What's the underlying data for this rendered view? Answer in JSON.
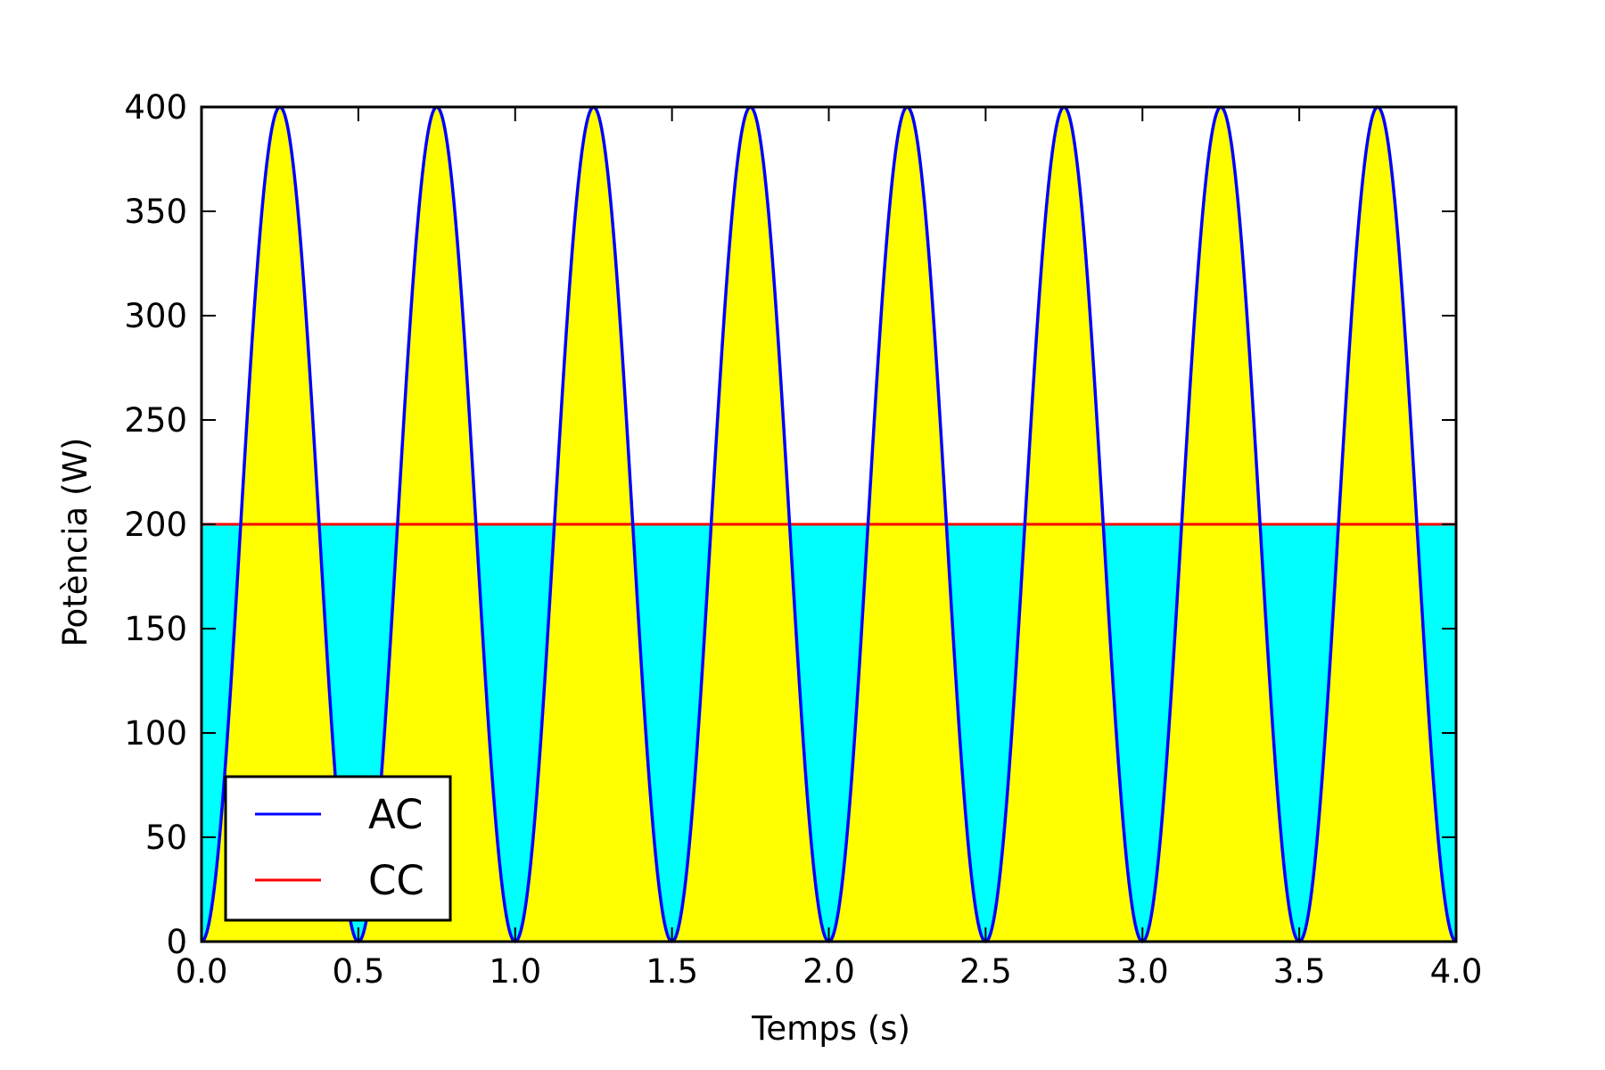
{
  "chart_data": {
    "type": "area",
    "title": "",
    "xlabel": "Temps (s)",
    "ylabel": "Potència (W)",
    "xlim": [
      0.0,
      4.0
    ],
    "ylim": [
      0,
      400
    ],
    "grid": false,
    "legend_position": "lower-left",
    "x_ticks": [
      "0.0",
      "0.5",
      "1.0",
      "1.5",
      "2.0",
      "2.5",
      "3.0",
      "3.5",
      "4.0"
    ],
    "y_ticks": [
      "0",
      "50",
      "100",
      "150",
      "200",
      "250",
      "300",
      "350",
      "400"
    ],
    "series": [
      {
        "name": "AC",
        "color": "#0000ff",
        "formula": "400*sin^2(2*pi*t)",
        "fill_above_cc": "#ffff00",
        "x": [
          0.0,
          0.125,
          0.25,
          0.375,
          0.5,
          0.625,
          0.75,
          0.875,
          1.0,
          1.125,
          1.25,
          1.375,
          1.5,
          1.625,
          1.75,
          1.875,
          2.0,
          2.125,
          2.25,
          2.375,
          2.5,
          2.625,
          2.75,
          2.875,
          3.0,
          3.125,
          3.25,
          3.375,
          3.5,
          3.625,
          3.75,
          3.875,
          4.0
        ],
        "values": [
          0,
          200,
          400,
          200,
          0,
          200,
          400,
          200,
          0,
          200,
          400,
          200,
          0,
          200,
          400,
          200,
          0,
          200,
          400,
          200,
          0,
          200,
          400,
          200,
          0,
          200,
          400,
          200,
          0,
          200,
          400,
          200,
          0
        ]
      },
      {
        "name": "CC",
        "color": "#ff0000",
        "fill_below": "#00ffff",
        "x": [
          0.0,
          4.0
        ],
        "values": [
          200,
          200
        ]
      }
    ]
  }
}
